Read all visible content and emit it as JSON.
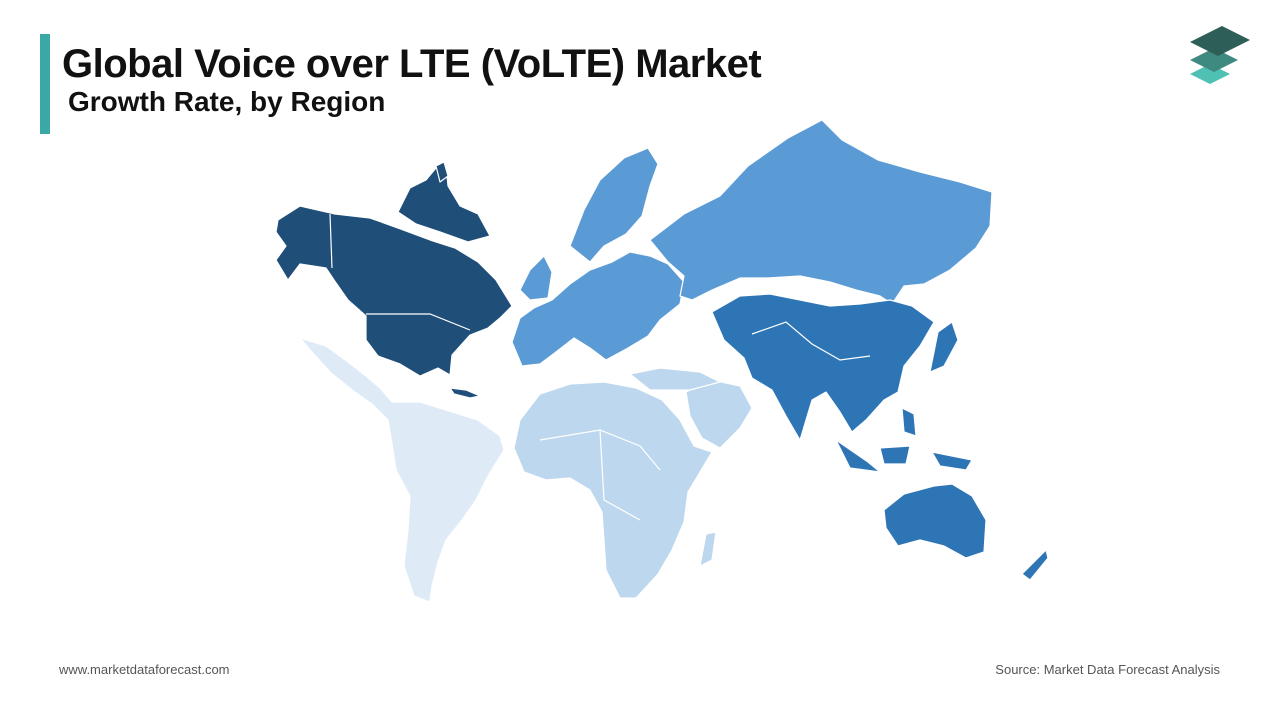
{
  "header": {
    "title": "Global Voice over LTE (VoLTE) Market",
    "subtitle": "Growth Rate, by Region"
  },
  "footer": {
    "website": "www.marketdataforecast.com",
    "source": "Source: Market Data Forecast Analysis"
  },
  "logo": {
    "icon": "layered-stack-icon",
    "colors": [
      "#2d5e57",
      "#3f8a80",
      "#4fc1b4"
    ]
  },
  "map": {
    "regions": [
      {
        "id": "north-america",
        "color": "#1f4e79"
      },
      {
        "id": "asia-pacific",
        "color": "#2e75b6"
      },
      {
        "id": "europe",
        "color": "#5b9bd5"
      },
      {
        "id": "middle-east-africa",
        "color": "#bdd7ee"
      },
      {
        "id": "latin-america",
        "color": "#deebf7"
      }
    ]
  }
}
